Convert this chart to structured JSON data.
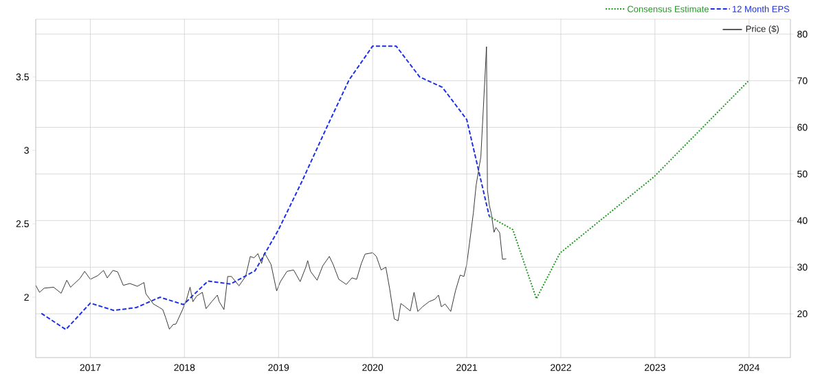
{
  "chart_data": {
    "type": "line",
    "xlim": [
      2016.42,
      2024.44
    ],
    "xticks": [
      2017,
      2018,
      2019,
      2020,
      2021,
      2022,
      2023,
      2024
    ],
    "ylim": [
      1.589,
      3.893
    ],
    "yticks": [
      2,
      2.5,
      3,
      3.5
    ],
    "y2lim": [
      10.6,
      83.2
    ],
    "y2ticks": [
      20,
      30,
      40,
      50,
      60,
      70,
      80
    ],
    "grid": true,
    "legend": "top right",
    "marker": "none",
    "series": [
      {
        "name": "Consensus Estimate",
        "color": "#1f9a1f",
        "line_style": "dotted",
        "axis": "y",
        "x": [
          2021.24,
          2021.49,
          2021.74,
          2021.99,
          2022.99,
          2023.99
        ],
        "values": [
          2.55,
          2.46,
          1.99,
          2.3,
          2.82,
          3.47
        ]
      },
      {
        "name": "12 Month EPS",
        "color": "#1a2fe6",
        "line_style": "dashed",
        "axis": "y",
        "x": [
          2016.48,
          2016.74,
          2017.0,
          2017.25,
          2017.49,
          2017.74,
          2017.99,
          2018.25,
          2018.49,
          2018.75,
          2019.0,
          2019.25,
          2019.5,
          2019.75,
          2020.0,
          2020.25,
          2020.5,
          2020.74,
          2021.0,
          2021.24
        ],
        "values": [
          1.89,
          1.78,
          1.96,
          1.91,
          1.93,
          2.0,
          1.95,
          2.11,
          2.09,
          2.18,
          2.46,
          2.79,
          3.14,
          3.48,
          3.71,
          3.71,
          3.5,
          3.43,
          3.21,
          2.55
        ]
      },
      {
        "name": "Price ($)",
        "color": "#222222",
        "line_style": "solid",
        "axis": "y2",
        "x": [
          2016.42,
          2016.46,
          2016.51,
          2016.61,
          2016.69,
          2016.75,
          2016.79,
          2016.89,
          2016.94,
          2017.0,
          2017.08,
          2017.14,
          2017.18,
          2017.24,
          2017.29,
          2017.35,
          2017.42,
          2017.5,
          2017.57,
          2017.59,
          2017.67,
          2017.73,
          2017.77,
          2017.8,
          2017.84,
          2017.88,
          2017.91,
          2017.98,
          2018.02,
          2018.06,
          2018.09,
          2018.13,
          2018.19,
          2018.23,
          2018.29,
          2018.35,
          2018.37,
          2018.42,
          2018.46,
          2018.5,
          2018.54,
          2018.58,
          2018.65,
          2018.7,
          2018.74,
          2018.78,
          2018.82,
          2018.85,
          2018.92,
          2018.98,
          2019.02,
          2019.09,
          2019.16,
          2019.23,
          2019.29,
          2019.31,
          2019.34,
          2019.41,
          2019.47,
          2019.54,
          2019.58,
          2019.64,
          2019.72,
          2019.78,
          2019.83,
          2019.88,
          2019.92,
          2020.0,
          2020.04,
          2020.09,
          2020.14,
          2020.18,
          2020.23,
          2020.27,
          2020.3,
          2020.34,
          2020.4,
          2020.44,
          2020.48,
          2020.53,
          2020.6,
          2020.66,
          2020.7,
          2020.73,
          2020.77,
          2020.83,
          2020.88,
          2020.93,
          2020.97,
          2021.0,
          2021.04,
          2021.07,
          2021.1,
          2021.15,
          2021.21,
          2021.22,
          2021.24,
          2021.26,
          2021.29,
          2021.31,
          2021.35,
          2021.38,
          2021.42
        ],
        "values": [
          26.1,
          24.6,
          25.5,
          25.7,
          24.4,
          27.2,
          25.7,
          27.6,
          29.1,
          27.4,
          28.2,
          29.3,
          27.7,
          29.3,
          29.0,
          26.1,
          26.5,
          25.9,
          26.7,
          24.3,
          22.1,
          21.4,
          20.9,
          19.2,
          16.7,
          17.7,
          17.8,
          20.9,
          22.9,
          25.7,
          22.6,
          23.8,
          24.6,
          21.1,
          22.6,
          24.0,
          22.6,
          20.9,
          28.0,
          28.0,
          27.0,
          26.0,
          28.0,
          32.3,
          32.0,
          32.9,
          30.8,
          33.1,
          30.6,
          24.9,
          26.9,
          29.1,
          29.4,
          26.9,
          30.0,
          31.4,
          29.1,
          27.2,
          30.3,
          32.3,
          30.6,
          27.4,
          26.3,
          27.7,
          27.4,
          30.8,
          32.8,
          33.1,
          32.3,
          29.4,
          30.0,
          25.5,
          18.9,
          18.5,
          22.2,
          21.6,
          20.6,
          24.6,
          20.5,
          21.5,
          22.6,
          23.1,
          24.0,
          21.5,
          22.1,
          20.5,
          24.9,
          28.3,
          28.0,
          30.6,
          36.8,
          41.6,
          47.6,
          53.7,
          77.3,
          46.6,
          43.3,
          41.6,
          37.5,
          38.5,
          37.4,
          31.7,
          31.8
        ]
      }
    ]
  }
}
